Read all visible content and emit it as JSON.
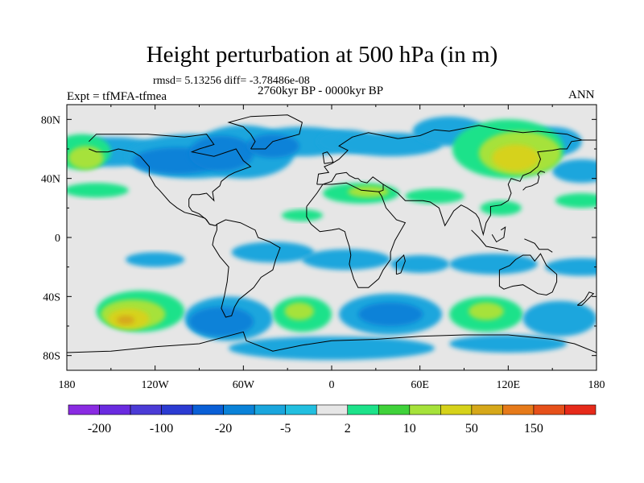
{
  "title": "Height perturbation at 500 hPa (in m)",
  "stats_text": "rmsd= 5.13256 diff= -3.78486e-08",
  "period_text": "2760kyr BP - 0000kyr BP",
  "experiment_text": "Expt = tfMFA-tfmea",
  "season_text": "ANN",
  "lat_labels": [
    "80N",
    "40N",
    "0",
    "40S",
    "80S"
  ],
  "lon_labels": [
    "180",
    "120W",
    "60W",
    "0",
    "60E",
    "120E",
    "180"
  ],
  "colorbar": {
    "colors": [
      "#8a2be2",
      "#6a2be0",
      "#4b3bd6",
      "#2b3bd2",
      "#0a5fd6",
      "#0a82d8",
      "#1aa6dd",
      "#22bfe0",
      "#e6e6e6",
      "#1de28a",
      "#3fd23a",
      "#a6e23a",
      "#d6d21a",
      "#d6a81a",
      "#e67a1a",
      "#e6501a",
      "#e62a1a"
    ],
    "labels": [
      "-200",
      "-100",
      "-20",
      "-5",
      "2",
      "10",
      "50",
      "150"
    ]
  },
  "palette": {
    "neutral": "#e6e6e6",
    "neg_light": "#1aa6dd",
    "neg_mid": "#0a82d8",
    "pos_light": "#1de28a",
    "pos_mid": "#a6e23a",
    "pos_strong": "#d6d21a",
    "pos_max": "#d6a81a",
    "coast": "#000000"
  }
}
